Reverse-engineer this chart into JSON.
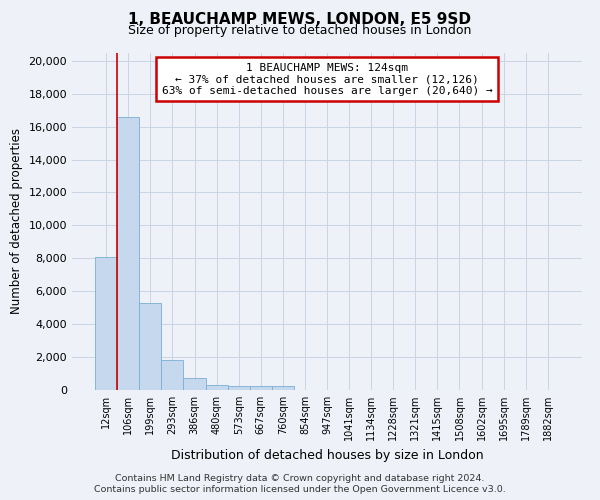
{
  "title": "1, BEAUCHAMP MEWS, LONDON, E5 9SD",
  "subtitle": "Size of property relative to detached houses in London",
  "xlabel": "Distribution of detached houses by size in London",
  "ylabel": "Number of detached properties",
  "categories": [
    "12sqm",
    "106sqm",
    "199sqm",
    "293sqm",
    "386sqm",
    "480sqm",
    "573sqm",
    "667sqm",
    "760sqm",
    "854sqm",
    "947sqm",
    "1041sqm",
    "1134sqm",
    "1228sqm",
    "1321sqm",
    "1415sqm",
    "1508sqm",
    "1602sqm",
    "1695sqm",
    "1789sqm",
    "1882sqm"
  ],
  "values": [
    8100,
    16600,
    5300,
    1850,
    750,
    330,
    260,
    220,
    220,
    0,
    0,
    0,
    0,
    0,
    0,
    0,
    0,
    0,
    0,
    0,
    0
  ],
  "bar_color": "#c5d8ee",
  "bar_edge_color": "#7aafd4",
  "grid_color": "#c8d4e4",
  "property_line_color": "#cc0000",
  "property_line_bar_index": 1,
  "annotation_box_text": "1 BEAUCHAMP MEWS: 124sqm\n← 37% of detached houses are smaller (12,126)\n63% of semi-detached houses are larger (20,640) →",
  "annotation_box_edge_color": "#cc0000",
  "ylim": [
    0,
    20500
  ],
  "yticks": [
    0,
    2000,
    4000,
    6000,
    8000,
    10000,
    12000,
    14000,
    16000,
    18000,
    20000
  ],
  "footer_line1": "Contains HM Land Registry data © Crown copyright and database right 2024.",
  "footer_line2": "Contains public sector information licensed under the Open Government Licence v3.0.",
  "bg_color": "#eef2f8",
  "plot_bg_color": "#eef2f8"
}
